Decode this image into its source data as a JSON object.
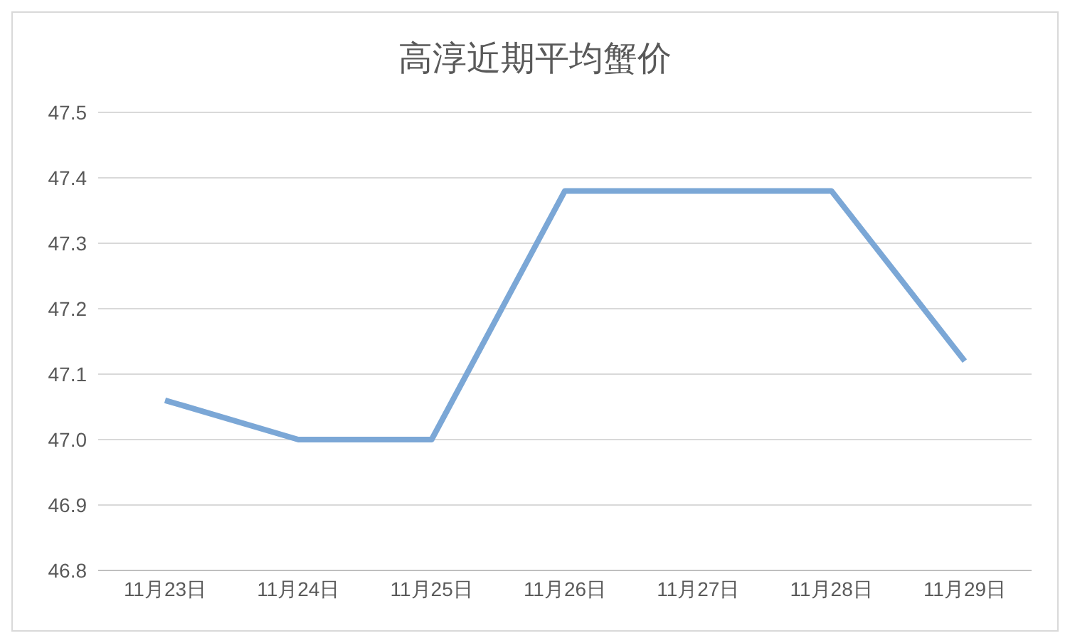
{
  "chart_data": {
    "type": "line",
    "title": "高淳近期平均蟹价",
    "categories": [
      "11月23日",
      "11月24日",
      "11月25日",
      "11月26日",
      "11月27日",
      "11月28日",
      "11月29日"
    ],
    "series": [
      {
        "color": "#7ba7d6",
        "values": [
          47.06,
          47.0,
          47.0,
          47.38,
          47.38,
          47.38,
          47.12
        ]
      }
    ],
    "ylim": [
      46.8,
      47.5
    ],
    "yticks": [
      46.8,
      46.9,
      {
        "value": 47,
        "label": "47.0"
      },
      47.1,
      47.2,
      47.3,
      47.4,
      47.5
    ],
    "grid": "y"
  }
}
